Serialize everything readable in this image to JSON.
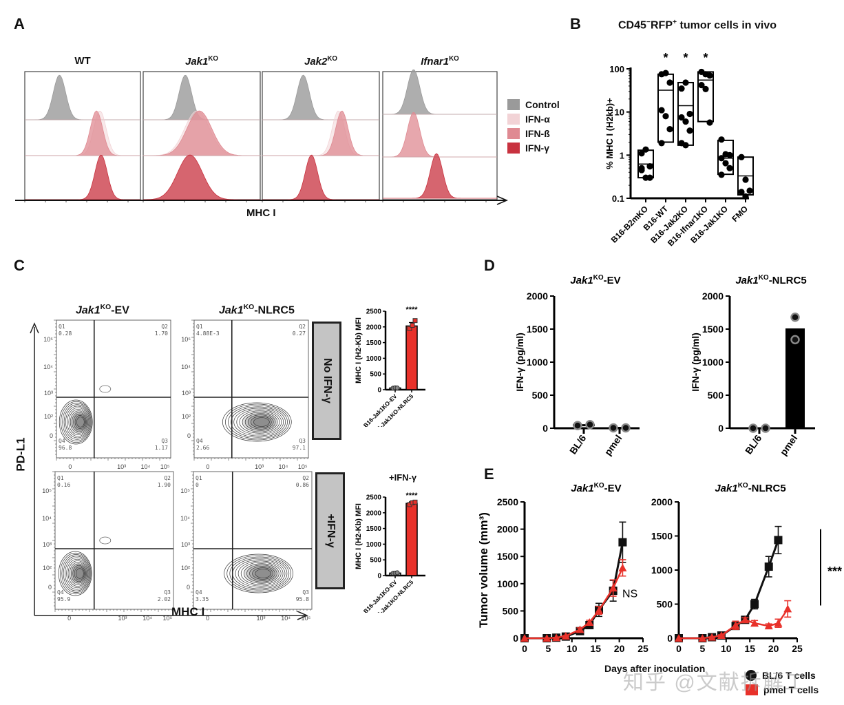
{
  "panels": {
    "A": {
      "letter": "A",
      "x_axis_label": "MHC I",
      "columns": [
        {
          "title_main": "WT",
          "title_sup": "",
          "italic": false
        },
        {
          "title_main": "Jak1",
          "title_sup": "KO",
          "italic": true
        },
        {
          "title_main": "Jak2",
          "title_sup": "KO",
          "italic": true
        },
        {
          "title_main": "Ifnar1",
          "title_sup": "KO",
          "italic": true
        }
      ],
      "legend": [
        {
          "label": "Control",
          "color": "#9a9a9a"
        },
        {
          "label": "IFN-α",
          "color": "#f2d3d6"
        },
        {
          "label": "IFN-ß",
          "color": "#df8a92"
        },
        {
          "label": "IFN-γ",
          "color": "#c8323f"
        }
      ]
    },
    "B": {
      "letter": "B",
      "title_pre": "CD45",
      "title_sup1": "−",
      "title_mid": "RFP",
      "title_sup2": "+",
      "title_post": " tumor cells in vivo"
    },
    "C": {
      "letter": "C",
      "y_axis_label": "PD-L1",
      "x_axis_label": "MHC I",
      "col_titles": [
        {
          "main": "Jak1",
          "sup": "KO",
          "post": "-EV"
        },
        {
          "main": "Jak1",
          "sup": "KO",
          "post": "-NLRC5"
        }
      ],
      "row_labels": [
        "No IFN-γ",
        "+IFN-γ"
      ],
      "plots": [
        {
          "q1": "Q1",
          "q1v": "0.28",
          "q2": "Q2",
          "q2v": "1.70",
          "q3": "Q3",
          "q3v": "1.17",
          "q4": "Q4",
          "q4v": "96.8"
        },
        {
          "q1": "Q1",
          "q1v": "4.88E-3",
          "q2": "Q2",
          "q2v": "0.27",
          "q3": "Q3",
          "q3v": "97.1",
          "q4": "Q4",
          "q4v": "2.66"
        },
        {
          "q1": "Q1",
          "q1v": "0.16",
          "q2": "Q2",
          "q2v": "1.90",
          "q3": "Q3",
          "q3v": "2.02",
          "q4": "Q4",
          "q4v": "95.9"
        },
        {
          "q1": "Q1",
          "q1v": "0",
          "q2": "Q2",
          "q2v": "0.86",
          "q3": "Q3",
          "q3v": "95.8",
          "q4": "Q4",
          "q4v": "3.35"
        }
      ],
      "flow_axis_ticks": [
        "0",
        "10³",
        "10⁴",
        "10⁵"
      ],
      "flow_y_ticks": [
        "0",
        "10²",
        "10³",
        "10⁴",
        "10⁵"
      ],
      "bar_top_label": "+IFN-γ"
    },
    "D": {
      "letter": "D"
    },
    "E": {
      "letter": "E",
      "x_axis_label": "Days after inoculation",
      "y_axis_label": "Tumor volume (mm³)",
      "legend": [
        {
          "label": "BL/6 T cells",
          "color": "#111111",
          "marker": "circle"
        },
        {
          "label": "pmel T cells",
          "color": "#e8312a",
          "marker": "square"
        }
      ]
    }
  },
  "watermark": "知乎 @文献拆解工",
  "chart_data": [
    {
      "id": "A-histograms",
      "type": "area",
      "title": "MHC I histograms",
      "xlabel": "MHC I",
      "series_order": [
        "Control",
        "IFN-α",
        "IFN-ß",
        "IFN-γ"
      ],
      "peaks_relative_position": {
        "WT": {
          "Control": 0.3,
          "IFN-α": 0.65,
          "IFN-ß": 0.62,
          "IFN-γ": 0.66
        },
        "Jak1KO": {
          "Control": 0.36,
          "IFN-α": 0.46,
          "IFN-ß": 0.48,
          "IFN-γ": 0.4
        },
        "Jak2KO": {
          "Control": 0.35,
          "IFN-α": 0.65,
          "IFN-ß": 0.68,
          "IFN-γ": 0.42
        },
        "Ifnar1KO": {
          "Control": 0.27,
          "IFN-ß": 0.27,
          "IFN-γ": 0.47
        }
      }
    },
    {
      "id": "B-box",
      "type": "scatter",
      "title": "CD45−RFP+ tumor cells in vivo",
      "ylabel": "% MHC I (H2kb)+",
      "yscale": "log",
      "ylim": [
        0.1,
        100
      ],
      "yticks": [
        "0.1",
        "1",
        "10",
        "100"
      ],
      "categories": [
        "B16-B2mKO",
        "B16-WT",
        "B16-Jak2KO",
        "B16-Ifnar1KO",
        "B16-Jak1KO",
        "FMO"
      ],
      "significance": [
        "",
        "*",
        "*",
        "*",
        "",
        ""
      ],
      "boxes": [
        {
          "min": 0.3,
          "median": 0.62,
          "max": 1.3
        },
        {
          "min": 2.0,
          "median": 32,
          "max": 75
        },
        {
          "min": 1.7,
          "median": 14,
          "max": 48
        },
        {
          "min": 6.0,
          "median": 55,
          "max": 85
        },
        {
          "min": 0.36,
          "median": 0.85,
          "max": 2.2
        },
        {
          "min": 0.12,
          "median": 0.33,
          "max": 0.9
        }
      ],
      "points": [
        [
          1.1,
          1.35,
          0.55,
          0.45,
          0.3,
          0.3,
          0.5
        ],
        [
          75,
          80,
          48,
          11,
          8,
          4,
          1.9
        ],
        [
          35,
          48,
          9,
          7.5,
          6,
          3.7,
          1.9,
          1.7
        ],
        [
          85,
          75,
          70,
          42,
          34,
          5.7
        ],
        [
          2.3,
          1.05,
          1.0,
          0.85,
          0.65,
          0.5,
          0.35
        ],
        [
          0.9,
          0.27,
          0.15,
          0.14,
          0.11
        ]
      ]
    },
    {
      "id": "C-bar-noIFN",
      "type": "bar",
      "ylabel": "MHC I (H2-Kb) MFI",
      "ylim": [
        0,
        2500
      ],
      "yticks": [
        0,
        500,
        1000,
        1500,
        2000,
        2500
      ],
      "categories": [
        "B16-Jak1KO-EV",
        "B16-Jak1KO-NLRC5"
      ],
      "values": [
        55,
        2030
      ],
      "errors": [
        10,
        110
      ],
      "points": [
        [
          50,
          60,
          55
        ],
        [
          1950,
          2050,
          2200
        ]
      ],
      "colors": [
        "#888888",
        "#e8312a"
      ],
      "significance": "****"
    },
    {
      "id": "C-bar-IFNg",
      "type": "bar",
      "title": "+IFN-γ",
      "ylabel": "MHC I (H2-Kb) MFI",
      "ylim": [
        0,
        2500
      ],
      "yticks": [
        0,
        500,
        1000,
        1500,
        2000,
        2500
      ],
      "categories": [
        "B16-Jak1KO-EV",
        "B16-Jak1KO-NLRC5"
      ],
      "values": [
        80,
        2300
      ],
      "errors": [
        10,
        50
      ],
      "points": [
        [
          75,
          80,
          90
        ],
        [
          2260,
          2320,
          2340
        ]
      ],
      "colors": [
        "#888888",
        "#e8312a"
      ],
      "significance": "****"
    },
    {
      "id": "D-EV",
      "type": "bar",
      "title": "Jak1KO-EV",
      "ylabel": "IFN-γ (pg/ml)",
      "ylim": [
        0,
        2000
      ],
      "yticks": [
        0,
        500,
        1000,
        1500,
        2000
      ],
      "categories": [
        "BL/6",
        "pmel"
      ],
      "values": [
        45,
        5
      ],
      "points": [
        [
          40,
          55
        ],
        [
          5,
          5
        ]
      ]
    },
    {
      "id": "D-NLRC5",
      "type": "bar",
      "title": "Jak1KO-NLRC5",
      "ylabel": "IFN-γ (pg/ml)",
      "ylim": [
        0,
        2000
      ],
      "yticks": [
        0,
        500,
        1000,
        1500,
        2000
      ],
      "categories": [
        "BL/6",
        "pmel"
      ],
      "values": [
        0,
        1510
      ],
      "points": [
        [
          0,
          0
        ],
        [
          1680,
          1340
        ]
      ]
    },
    {
      "id": "E-EV",
      "type": "line",
      "title": "Jak1KO-EV",
      "xlabel": "Days after inoculation",
      "ylabel": "Tumor volume (mm³)",
      "xlim": [
        0,
        25
      ],
      "ylim": [
        0,
        2500
      ],
      "xticks": [
        0,
        5,
        10,
        15,
        20,
        25
      ],
      "yticks": [
        0,
        500,
        1000,
        1500,
        2000,
        2500
      ],
      "annotation": "NS",
      "series": [
        {
          "name": "BL/6 T cells",
          "color": "#111111",
          "x": [
            0,
            4.7,
            6.7,
            8.7,
            11.7,
            13.7,
            15.7,
            18.7,
            20.7
          ],
          "y": [
            0,
            0,
            10,
            30,
            130,
            240,
            520,
            870,
            1760
          ],
          "err": [
            0,
            0,
            5,
            10,
            30,
            50,
            120,
            190,
            370
          ]
        },
        {
          "name": "pmel T cells",
          "color": "#e8312a",
          "x": [
            0,
            4.7,
            6.7,
            8.7,
            11.7,
            13.7,
            15.7,
            18.7,
            20.7
          ],
          "y": [
            0,
            0,
            10,
            40,
            160,
            290,
            510,
            920,
            1290
          ],
          "err": [
            0,
            0,
            5,
            10,
            30,
            40,
            70,
            150,
            150
          ]
        }
      ]
    },
    {
      "id": "E-NLRC5",
      "type": "line",
      "title": "Jak1KO-NLRC5",
      "xlabel": "Days after inoculation",
      "ylabel": "Tumor volume (mm³)",
      "xlim": [
        0,
        25
      ],
      "ylim": [
        0,
        2000
      ],
      "xticks": [
        0,
        5,
        10,
        15,
        20,
        25
      ],
      "yticks": [
        0,
        500,
        1000,
        1500,
        2000
      ],
      "annotation": "***",
      "series": [
        {
          "name": "BL/6 T cells",
          "color": "#111111",
          "x": [
            0,
            5,
            7,
            9,
            12,
            14,
            16,
            19,
            21
          ],
          "y": [
            0,
            0,
            15,
            40,
            180,
            270,
            500,
            1050,
            1440
          ],
          "err": [
            0,
            0,
            5,
            10,
            30,
            30,
            70,
            150,
            200
          ]
        },
        {
          "name": "pmel T cells",
          "color": "#e8312a",
          "x": [
            0,
            5,
            7,
            9,
            12,
            14,
            16,
            19,
            21,
            23
          ],
          "y": [
            0,
            0,
            15,
            40,
            190,
            270,
            220,
            180,
            220,
            430
          ],
          "err": [
            0,
            0,
            5,
            10,
            60,
            30,
            40,
            30,
            60,
            120
          ]
        }
      ]
    }
  ]
}
